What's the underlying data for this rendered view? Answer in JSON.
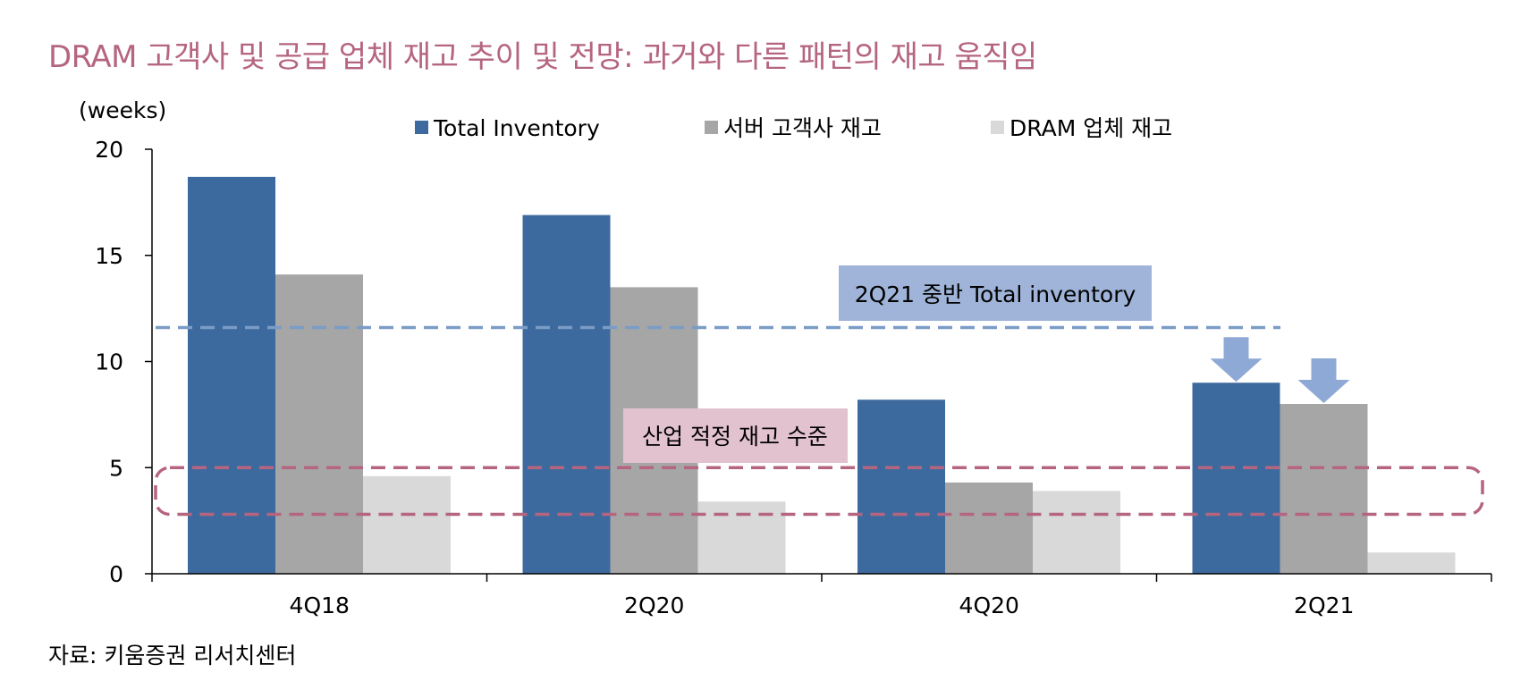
{
  "title": "DRAM 고객사 및 공급 업체 재고 추이 및 전망: 과거와 다른 패턴의 재고 움직임",
  "source": "자료: 키움증권 리서치센터",
  "chart_data": {
    "type": "bar",
    "ylabel": "(weeks)",
    "ylim": [
      0,
      20
    ],
    "yticks": [
      0,
      5,
      10,
      15,
      20
    ],
    "categories": [
      "4Q18",
      "2Q20",
      "4Q20",
      "2Q21"
    ],
    "series": [
      {
        "name": "Total Inventory",
        "color": "#3d6a9e",
        "values": [
          18.7,
          16.9,
          8.2,
          9.0
        ]
      },
      {
        "name": "서버 고객사 재고",
        "color": "#a6a6a6",
        "values": [
          14.1,
          13.5,
          4.3,
          8.0
        ]
      },
      {
        "name": "DRAM 업체 재고",
        "color": "#d9d9d9",
        "values": [
          4.6,
          3.4,
          3.9,
          1.0
        ]
      }
    ],
    "legend_position": "top",
    "annotations": {
      "reference_line": {
        "label": "2Q21 중반 Total inventory",
        "value": 11.6,
        "color": "#7a9cc6",
        "box_color": "#9fb4d8"
      },
      "optimal_band": {
        "label": "산업 적정 재고 수준",
        "range": [
          2.8,
          5.0
        ],
        "color": "#b5657f",
        "box_color": "#e3c2cf"
      },
      "arrows": {
        "category": "2Q21",
        "series": [
          "Total Inventory",
          "서버 고객사 재고"
        ],
        "color": "#8fa9d6",
        "direction": "down"
      }
    }
  }
}
